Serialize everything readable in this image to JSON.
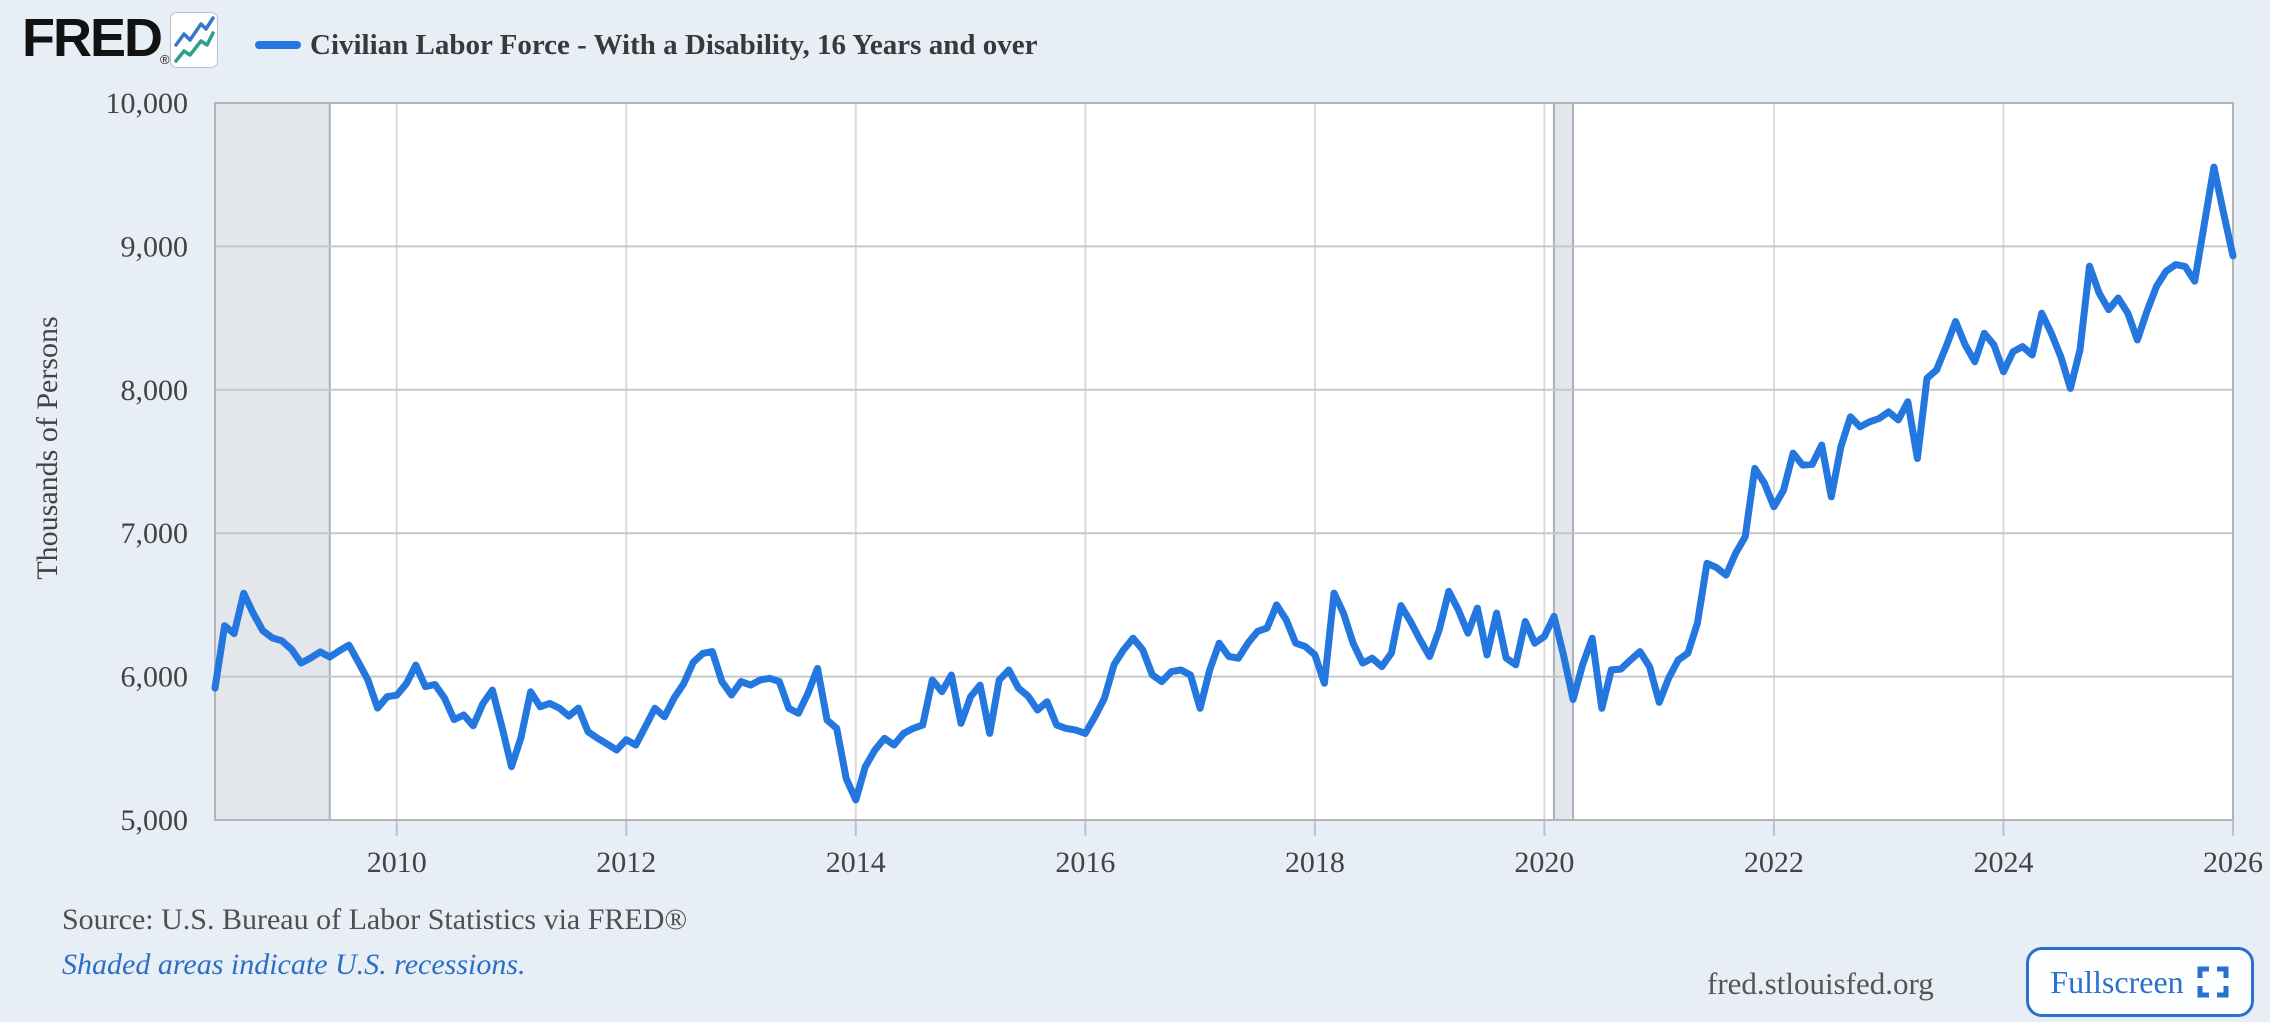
{
  "header": {
    "logo_text": "FRED",
    "registered_mark": "®",
    "legend": {
      "marker_color": "#2377de",
      "label": "Civilian Labor Force - With a Disability, 16 Years and over"
    }
  },
  "footer": {
    "source_text": "Source: U.S. Bureau of Labor Statistics via FRED®",
    "recession_note": "Shaded areas indicate U.S. recessions.",
    "site_link": "fred.stlouisfed.org",
    "fullscreen_label": "Fullscreen"
  },
  "colors": {
    "page_background": "#e8eef5",
    "plot_background": "#ffffff",
    "line": "#2377de",
    "gridline": "#c5c7c9",
    "plot_border": "#b2b4b6",
    "recession_band": "#e3e6ea",
    "recession_band_edge": "#aab0b8",
    "tick_label": "#434343",
    "tick_stub": "#b6c2d4",
    "accent_blue": "#2a70cc",
    "logo_icon_blue": "#3478c9",
    "logo_icon_teal": "#2f9e8f"
  },
  "chart_data": {
    "type": "line",
    "title": "Civilian Labor Force - With a Disability, 16 Years and over",
    "ylabel": "Thousands of Persons",
    "units": "Thousands of Persons",
    "frequency": "monthly",
    "ylim": [
      5000,
      10000
    ],
    "x_range_decimal_years": [
      2008.4167,
      2026.0
    ],
    "grid": "both",
    "legend_position": "top-left",
    "y_ticks": [
      {
        "value": 5000,
        "label": "5,000"
      },
      {
        "value": 6000,
        "label": "6,000"
      },
      {
        "value": 7000,
        "label": "7,000"
      },
      {
        "value": 8000,
        "label": "8,000"
      },
      {
        "value": 9000,
        "label": "9,000"
      },
      {
        "value": 10000,
        "label": "10,000"
      }
    ],
    "x_ticks": [
      {
        "value": 2010,
        "label": "2010"
      },
      {
        "value": 2012,
        "label": "2012"
      },
      {
        "value": 2014,
        "label": "2014"
      },
      {
        "value": 2016,
        "label": "2016"
      },
      {
        "value": 2018,
        "label": "2018"
      },
      {
        "value": 2020,
        "label": "2020"
      },
      {
        "value": 2022,
        "label": "2022"
      },
      {
        "value": 2024,
        "label": "2024"
      },
      {
        "value": 2026,
        "label": "2026"
      }
    ],
    "recession_bands": [
      {
        "start": 2008.4167,
        "end": 2009.4167
      },
      {
        "start": 2020.0833,
        "end": 2020.25
      }
    ],
    "series": [
      {
        "name": "Civilian Labor Force - With a Disability, 16 Years and over",
        "start": "2008-06",
        "frequency": "monthly",
        "values": [
          5919,
          6355,
          6300,
          6581,
          6440,
          6320,
          6270,
          6250,
          6190,
          6095,
          6130,
          6172,
          6137,
          6180,
          6220,
          6100,
          5975,
          5780,
          5860,
          5870,
          5950,
          6080,
          5930,
          5945,
          5850,
          5700,
          5732,
          5657,
          5810,
          5906,
          5650,
          5372,
          5575,
          5894,
          5790,
          5813,
          5780,
          5725,
          5780,
          5616,
          5570,
          5530,
          5488,
          5560,
          5523,
          5651,
          5779,
          5720,
          5850,
          5950,
          6100,
          6162,
          6174,
          5965,
          5872,
          5965,
          5941,
          5976,
          5988,
          5965,
          5779,
          5744,
          5884,
          6057,
          5697,
          5639,
          5290,
          5140,
          5372,
          5488,
          5570,
          5523,
          5604,
          5639,
          5662,
          5976,
          5895,
          6011,
          5674,
          5860,
          5941,
          5604,
          5976,
          6046,
          5920,
          5865,
          5767,
          5825,
          5662,
          5639,
          5627,
          5604,
          5720,
          5849,
          6082,
          6187,
          6268,
          6187,
          6012,
          5965,
          6035,
          6046,
          6011,
          5779,
          6046,
          6233,
          6140,
          6128,
          6233,
          6315,
          6338,
          6500,
          6396,
          6233,
          6210,
          6152,
          5953,
          6582,
          6442,
          6233,
          6094,
          6128,
          6070,
          6163,
          6495,
          6384,
          6256,
          6140,
          6326,
          6594,
          6466,
          6303,
          6478,
          6151,
          6443,
          6130,
          6082,
          6384,
          6233,
          6280,
          6420,
          6150,
          5840,
          6082,
          6268,
          5779,
          6047,
          6052,
          6116,
          6174,
          6069,
          5820,
          5990,
          6116,
          6164,
          6372,
          6790,
          6760,
          6708,
          6861,
          6975,
          7452,
          7349,
          7184,
          7300,
          7558,
          7475,
          7480,
          7615,
          7254,
          7603,
          7812,
          7742,
          7777,
          7800,
          7846,
          7790,
          7917,
          7521,
          8080,
          8138,
          8301,
          8476,
          8313,
          8196,
          8394,
          8313,
          8126,
          8266,
          8301,
          8243,
          8534,
          8394,
          8231,
          8010,
          8278,
          8862,
          8675,
          8559,
          8640,
          8535,
          8348,
          8546,
          8721,
          8827,
          8873,
          8860,
          8757,
          9155,
          9553,
          9237,
          8934
        ]
      }
    ]
  }
}
